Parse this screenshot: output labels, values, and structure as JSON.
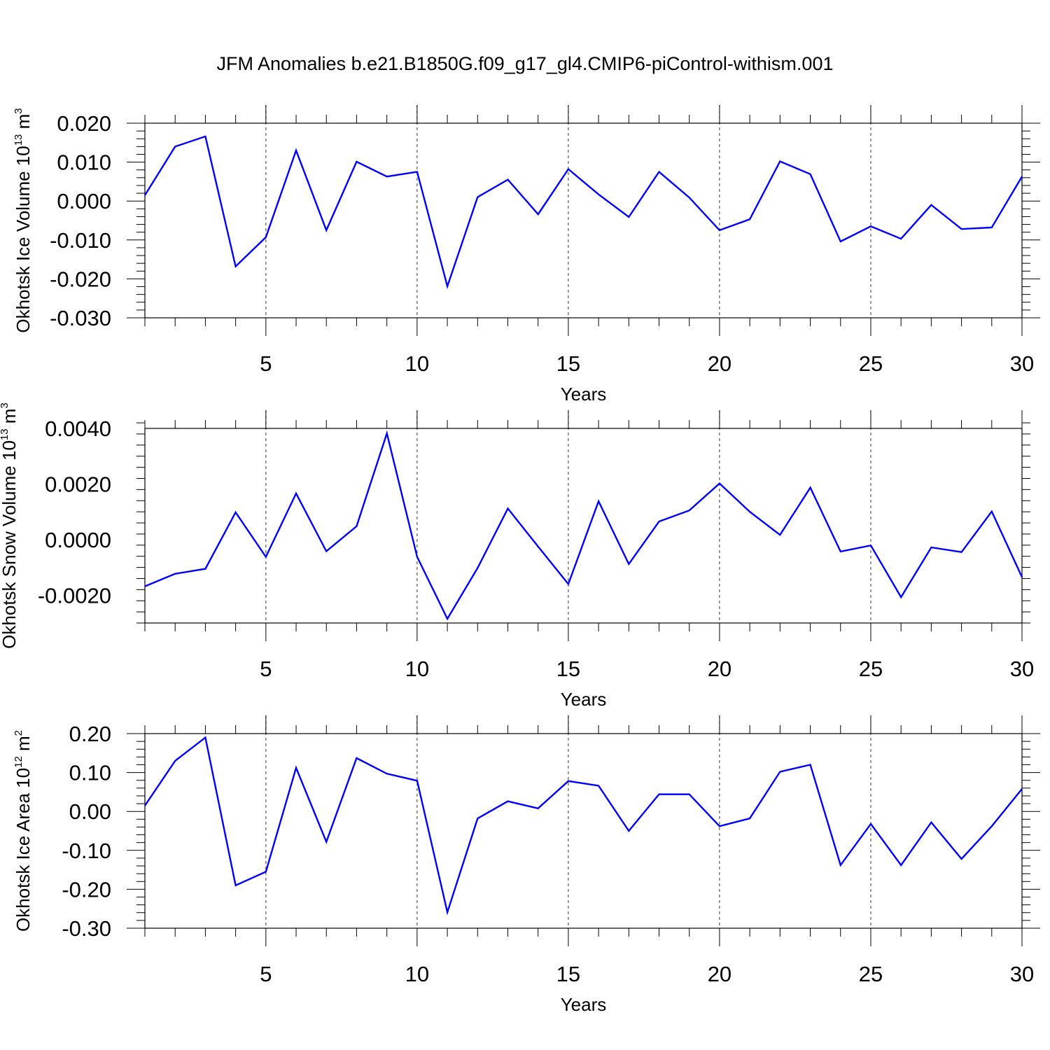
{
  "title": "JFM Anomalies b.e21.B1850G.f09_g17_gl4.CMIP6-piControl-withism.001",
  "colors": {
    "line": "#0000ff",
    "axis": "#000000",
    "grid": "#333333"
  },
  "chart_data": [
    {
      "type": "line",
      "id": "ice-volume",
      "ylabel": {
        "text": "Okhotsk Ice Volume 10",
        "exponent": "13",
        "unit": " m",
        "unit_exponent": "3"
      },
      "xlabel": "Years",
      "xlim": [
        1,
        30
      ],
      "ylim": [
        -0.03,
        0.02
      ],
      "xticks": [
        5,
        10,
        15,
        20,
        25,
        30
      ],
      "xtick_labels": [
        "5",
        "10",
        "15",
        "20",
        "25",
        "30"
      ],
      "yticks": [
        -0.03,
        -0.02,
        -0.01,
        0.0,
        0.01,
        0.02
      ],
      "ytick_labels": [
        "-0.030",
        "-0.020",
        "-0.010",
        "0.000",
        "0.010",
        "0.020"
      ],
      "grid_x": [
        5,
        10,
        15,
        20,
        25
      ],
      "x": [
        1,
        2,
        3,
        4,
        5,
        6,
        7,
        8,
        9,
        10,
        11,
        12,
        13,
        14,
        15,
        16,
        17,
        18,
        19,
        20,
        21,
        22,
        23,
        24,
        25,
        26,
        27,
        28,
        29,
        30
      ],
      "values": [
        0.0015,
        0.014,
        0.0166,
        -0.0168,
        -0.0093,
        0.013,
        -0.0075,
        0.0101,
        0.0063,
        0.0075,
        -0.0219,
        0.001,
        0.0055,
        -0.0034,
        0.0082,
        0.0017,
        -0.0041,
        0.0075,
        0.0009,
        -0.0075,
        -0.0047,
        0.0102,
        0.0069,
        -0.0104,
        -0.0065,
        -0.0097,
        -0.001,
        -0.0072,
        -0.0068,
        0.0063
      ]
    },
    {
      "type": "line",
      "id": "snow-volume",
      "ylabel": {
        "text": "Okhotsk Snow Volume 10",
        "exponent": "13",
        "unit": " m",
        "unit_exponent": "3"
      },
      "xlabel": "Years",
      "xlim": [
        1,
        30
      ],
      "ylim": [
        -0.003,
        0.004
      ],
      "xticks": [
        5,
        10,
        15,
        20,
        25,
        30
      ],
      "xtick_labels": [
        "5",
        "10",
        "15",
        "20",
        "25",
        "30"
      ],
      "yticks": [
        -0.002,
        0.0,
        0.002,
        0.004
      ],
      "ytick_labels": [
        "-0.0020",
        "0.0000",
        "0.0020",
        "0.0040"
      ],
      "grid_x": [
        5,
        10,
        15,
        20,
        25
      ],
      "x": [
        1,
        2,
        3,
        4,
        5,
        6,
        7,
        8,
        9,
        10,
        11,
        12,
        13,
        14,
        15,
        16,
        17,
        18,
        19,
        20,
        21,
        22,
        23,
        24,
        25,
        26,
        27,
        28,
        29,
        30
      ],
      "values": [
        -0.00168,
        -0.00123,
        -0.00105,
        0.00098,
        -0.00062,
        0.00166,
        -0.00042,
        0.00048,
        0.00382,
        -0.00062,
        -0.00285,
        -0.00102,
        0.00112,
        -0.00025,
        -0.0016,
        0.00138,
        -0.00088,
        0.00065,
        0.00105,
        0.00202,
        0.001,
        0.00017,
        0.00187,
        -0.00043,
        -0.00021,
        -0.00207,
        -0.00028,
        -0.00045,
        0.00101,
        -0.00135
      ]
    },
    {
      "type": "line",
      "id": "ice-area",
      "ylabel": {
        "text": "Okhotsk Ice Area 10",
        "exponent": "12",
        "unit": " m",
        "unit_exponent": "2"
      },
      "xlabel": "Years",
      "xlim": [
        1,
        30
      ],
      "ylim": [
        -0.3,
        0.2
      ],
      "xticks": [
        5,
        10,
        15,
        20,
        25,
        30
      ],
      "xtick_labels": [
        "5",
        "10",
        "15",
        "20",
        "25",
        "30"
      ],
      "yticks": [
        -0.3,
        -0.2,
        -0.1,
        0.0,
        0.1,
        0.2
      ],
      "ytick_labels": [
        "-0.30",
        "-0.20",
        "-0.10",
        "0.00",
        "0.10",
        "0.20"
      ],
      "grid_x": [
        5,
        10,
        15,
        20,
        25
      ],
      "x": [
        1,
        2,
        3,
        4,
        5,
        6,
        7,
        8,
        9,
        10,
        11,
        12,
        13,
        14,
        15,
        16,
        17,
        18,
        19,
        20,
        21,
        22,
        23,
        24,
        25,
        26,
        27,
        28,
        29,
        30
      ],
      "values": [
        0.015,
        0.13,
        0.19,
        -0.19,
        -0.155,
        0.112,
        -0.078,
        0.137,
        0.097,
        0.079,
        -0.259,
        -0.018,
        0.026,
        0.008,
        0.078,
        0.066,
        -0.05,
        0.044,
        0.044,
        -0.038,
        -0.018,
        0.102,
        0.12,
        -0.138,
        -0.032,
        -0.138,
        -0.028,
        -0.122,
        -0.038,
        0.058
      ]
    }
  ]
}
